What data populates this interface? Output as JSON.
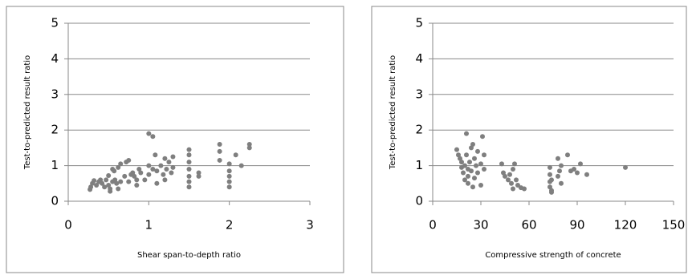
{
  "chart_data": [
    {
      "type": "scatter",
      "x_label": "Shear span-to-depth ratio",
      "y_label": "Test-to-predicted  result  ratio",
      "color": "#7f7f7f",
      "grid": true,
      "xlim": [
        0,
        3
      ],
      "xticks": [
        0,
        1,
        2,
        3
      ],
      "ylim": [
        0,
        5
      ],
      "yticks": [
        0,
        1,
        2,
        3,
        4,
        5
      ],
      "x": [
        0.27,
        0.28,
        0.3,
        0.32,
        0.35,
        0.38,
        0.4,
        0.42,
        0.45,
        0.47,
        0.5,
        0.5,
        0.52,
        0.52,
        0.55,
        0.55,
        0.57,
        0.58,
        0.6,
        0.62,
        0.62,
        0.65,
        0.65,
        0.7,
        0.72,
        0.75,
        0.75,
        0.78,
        0.8,
        0.82,
        0.85,
        0.85,
        0.88,
        0.9,
        0.95,
        1.0,
        1.0,
        1.0,
        1.05,
        1.05,
        1.08,
        1.1,
        1.1,
        1.15,
        1.18,
        1.2,
        1.2,
        1.22,
        1.25,
        1.28,
        1.3,
        1.3,
        1.5,
        1.5,
        1.5,
        1.5,
        1.5,
        1.5,
        1.5,
        1.62,
        1.62,
        1.88,
        1.88,
        1.88,
        2.0,
        2.0,
        2.0,
        2.0,
        2.0,
        2.08,
        2.15,
        2.25,
        2.25
      ],
      "values": [
        0.33,
        0.4,
        0.5,
        0.58,
        0.45,
        0.55,
        0.6,
        0.5,
        0.4,
        0.6,
        0.72,
        0.45,
        0.35,
        0.28,
        0.55,
        0.9,
        0.85,
        0.6,
        0.5,
        0.35,
        0.95,
        1.05,
        0.55,
        0.7,
        1.1,
        1.15,
        0.55,
        0.75,
        0.8,
        0.7,
        0.45,
        0.6,
        0.9,
        0.8,
        0.6,
        1.9,
        1.0,
        0.75,
        1.82,
        0.9,
        1.3,
        0.5,
        0.85,
        1.0,
        0.75,
        1.2,
        0.6,
        0.9,
        1.1,
        0.8,
        1.25,
        0.95,
        1.45,
        1.3,
        1.1,
        0.9,
        0.7,
        0.55,
        0.4,
        0.8,
        0.7,
        1.6,
        1.4,
        1.15,
        1.05,
        0.85,
        0.7,
        0.55,
        0.4,
        1.3,
        1.0,
        1.6,
        1.5
      ]
    },
    {
      "type": "scatter",
      "x_label": "Compressive strength of concrete",
      "y_label": "Test-to-predicted  result  ratio",
      "color": "#7f7f7f",
      "grid": true,
      "xlim": [
        0,
        150
      ],
      "xticks": [
        0,
        30,
        60,
        90,
        120,
        150
      ],
      "ylim": [
        0,
        5
      ],
      "yticks": [
        0,
        1,
        2,
        3,
        4,
        5
      ],
      "x": [
        15,
        16,
        17,
        18,
        18,
        19,
        20,
        20,
        21,
        21,
        22,
        22,
        22,
        23,
        24,
        24,
        25,
        25,
        26,
        26,
        27,
        28,
        28,
        30,
        30,
        31,
        32,
        32,
        43,
        44,
        45,
        47,
        48,
        49,
        50,
        50,
        51,
        52,
        53,
        55,
        57,
        73,
        73,
        73,
        73,
        74,
        74,
        74,
        78,
        78,
        79,
        80,
        80,
        84,
        86,
        88,
        90,
        92,
        96,
        120
      ],
      "values": [
        1.45,
        1.3,
        1.2,
        1.1,
        0.95,
        0.8,
        1.0,
        0.6,
        1.9,
        1.3,
        0.9,
        0.7,
        0.5,
        1.1,
        1.5,
        0.85,
        1.6,
        0.4,
        1.2,
        0.65,
        1.0,
        0.8,
        1.4,
        0.45,
        1.05,
        1.82,
        1.3,
        0.9,
        1.05,
        0.8,
        0.7,
        0.6,
        0.75,
        0.5,
        0.35,
        0.9,
        1.05,
        0.6,
        0.45,
        0.38,
        0.35,
        0.95,
        0.75,
        0.55,
        0.4,
        0.25,
        0.3,
        0.6,
        1.2,
        0.7,
        0.85,
        1.0,
        0.5,
        1.3,
        0.85,
        0.9,
        0.8,
        1.05,
        0.75,
        0.95
      ]
    }
  ]
}
